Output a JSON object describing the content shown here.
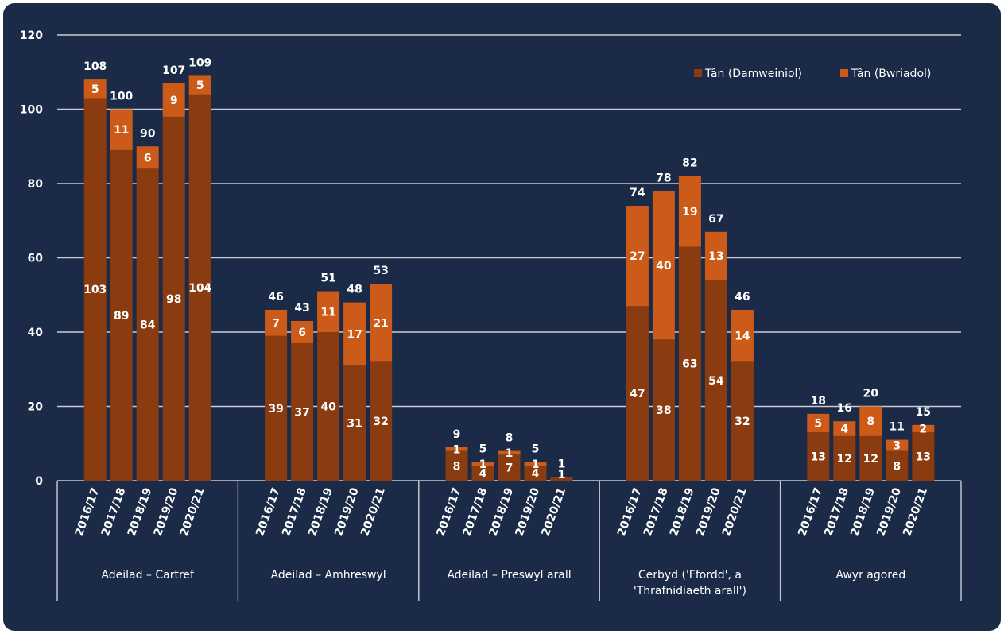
{
  "chart_data": {
    "type": "bar",
    "stacked": true,
    "title": "",
    "xlabel": "",
    "ylabel": "",
    "ylim": [
      0,
      120
    ],
    "yticks": [
      0,
      20,
      40,
      60,
      80,
      100,
      120
    ],
    "grid": true,
    "legend_position": "top-right",
    "colors": {
      "background": "#1b2a47",
      "Tân (Damweiniol)": "#8a3c10",
      "Tân (Bwriadol)": "#cc5a18",
      "grid": "#c8ccd6",
      "text": "#ffffff"
    },
    "categories": [
      "2016/17",
      "2017/18",
      "2018/19",
      "2019/20",
      "2020/21"
    ],
    "groups": [
      {
        "name": "Adeilad – Cartref",
        "damweiniol": [
          103,
          89,
          84,
          98,
          104
        ],
        "bwriadol": [
          5,
          11,
          6,
          9,
          5
        ],
        "totals": [
          108,
          100,
          90,
          107,
          109
        ]
      },
      {
        "name": "Adeilad – Amhreswyl",
        "damweiniol": [
          39,
          37,
          40,
          31,
          32
        ],
        "bwriadol": [
          7,
          6,
          11,
          17,
          21
        ],
        "totals": [
          46,
          43,
          51,
          48,
          53
        ]
      },
      {
        "name": "Adeilad – Preswyl arall",
        "damweiniol": [
          8,
          4,
          7,
          4,
          1
        ],
        "bwriadol": [
          1,
          1,
          1,
          1,
          0
        ],
        "totals": [
          9,
          5,
          8,
          5,
          1
        ]
      },
      {
        "name": "Cerbyd ('Ffordd', a 'Thrafnidiaeth arall')",
        "name_lines": [
          "Cerbyd ('Ffordd', a",
          "'Thrafnidiaeth arall')"
        ],
        "damweiniol": [
          47,
          38,
          63,
          54,
          32
        ],
        "bwriadol": [
          27,
          40,
          19,
          13,
          14
        ],
        "totals": [
          74,
          78,
          82,
          67,
          46
        ]
      },
      {
        "name": "Awyr agored",
        "damweiniol": [
          13,
          12,
          12,
          8,
          13
        ],
        "bwriadol": [
          5,
          4,
          8,
          3,
          2
        ],
        "totals": [
          18,
          16,
          20,
          11,
          15
        ]
      }
    ],
    "series": [
      {
        "name": "Tân (Damweiniol)",
        "key": "damweiniol"
      },
      {
        "name": "Tân (Bwriadol)",
        "key": "bwriadol"
      }
    ]
  }
}
